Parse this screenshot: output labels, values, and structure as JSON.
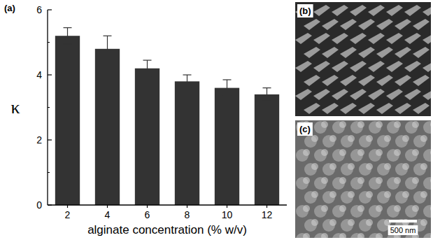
{
  "chart_data": {
    "type": "bar",
    "panel_label": "(a)",
    "x_label": "alginate concentration (% w/v)",
    "y_label": "κ",
    "categories": [
      "2",
      "4",
      "6",
      "8",
      "10",
      "12"
    ],
    "values": [
      5.2,
      4.8,
      4.2,
      3.8,
      3.6,
      3.4
    ],
    "errors": [
      0.25,
      0.4,
      0.25,
      0.2,
      0.25,
      0.2
    ],
    "color": "#333333",
    "ylim": [
      0,
      6
    ],
    "yticks": [
      0,
      2,
      4,
      6
    ],
    "grid": false
  },
  "panels": [
    {
      "label": "(b)"
    },
    {
      "label": "(c)",
      "scale_bar": "500 nm"
    }
  ]
}
